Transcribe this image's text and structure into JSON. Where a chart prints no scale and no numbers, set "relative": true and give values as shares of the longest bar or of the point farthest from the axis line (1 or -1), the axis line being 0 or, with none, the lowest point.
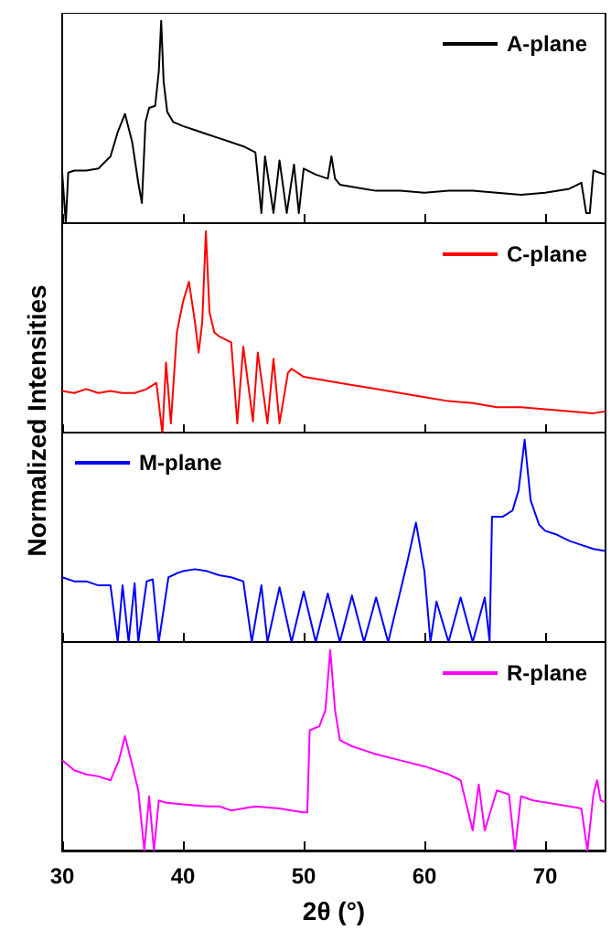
{
  "chart_data": [
    {
      "type": "line",
      "relative": true,
      "xlim": [
        30,
        75
      ],
      "xticks": [
        30,
        40,
        50,
        60,
        70
      ],
      "tick_labels": false,
      "legend": "top right",
      "grid": false,
      "marker": "none",
      "line_style": "solid",
      "series": [
        {
          "name": "A-plane",
          "color": "#000000",
          "x": [
            30,
            30.3,
            30.5,
            31,
            32,
            33,
            34,
            34.6,
            35.2,
            35.8,
            36.3,
            36.6,
            36.9,
            37.2,
            37.7,
            38.0,
            38.2,
            38.4,
            38.7,
            39.2,
            40,
            41,
            42,
            43,
            44,
            45,
            46,
            46.5,
            46.8,
            47.5,
            48,
            48.6,
            49.2,
            49.6,
            50,
            51,
            52,
            52.3,
            52.6,
            53,
            54,
            55,
            56,
            58,
            60,
            62,
            64,
            66,
            68,
            70,
            72,
            73,
            73.4,
            73.7,
            74,
            74.5,
            75
          ],
          "values": [
            0.25,
            0,
            0.25,
            0.26,
            0.26,
            0.27,
            0.33,
            0.45,
            0.54,
            0.4,
            0.2,
            0.1,
            0.5,
            0.57,
            0.58,
            0.75,
            1,
            0.7,
            0.55,
            0.5,
            0.48,
            0.46,
            0.44,
            0.42,
            0.4,
            0.38,
            0.35,
            0.05,
            0.33,
            0.05,
            0.31,
            0.05,
            0.29,
            0.05,
            0.27,
            0.24,
            0.22,
            0.33,
            0.22,
            0.19,
            0.18,
            0.17,
            0.16,
            0.16,
            0.15,
            0.16,
            0.16,
            0.15,
            0.14,
            0.15,
            0.17,
            0.2,
            0.05,
            0.05,
            0.26,
            0.25,
            0.24
          ]
        }
      ]
    },
    {
      "type": "line",
      "relative": true,
      "xlim": [
        30,
        75
      ],
      "xticks": [
        30,
        40,
        50,
        60,
        70
      ],
      "tick_labels": false,
      "legend": "top right",
      "grid": false,
      "marker": "none",
      "line_style": "solid",
      "ylabel": "Normalized Intensities",
      "series": [
        {
          "name": "C-plane",
          "color": "#ff0000",
          "x": [
            30,
            31,
            32,
            33,
            34,
            35,
            36,
            37,
            37.8,
            38.3,
            38.6,
            39,
            39.5,
            40,
            40.5,
            41,
            41.3,
            41.6,
            41.9,
            42.2,
            42.6,
            43,
            44,
            44.5,
            45,
            45.8,
            46.2,
            47,
            47.5,
            48,
            48.7,
            49,
            50,
            52,
            54,
            56,
            58,
            60,
            62,
            64,
            66,
            68,
            70,
            72,
            74,
            75
          ],
          "values": [
            0.21,
            0.2,
            0.22,
            0.2,
            0.21,
            0.2,
            0.2,
            0.22,
            0.25,
            0,
            0.35,
            0.05,
            0.5,
            0.65,
            0.75,
            0.55,
            0.4,
            0.55,
            1,
            0.6,
            0.5,
            0.48,
            0.45,
            0.05,
            0.43,
            0.06,
            0.4,
            0.05,
            0.37,
            0.05,
            0.3,
            0.32,
            0.28,
            0.26,
            0.24,
            0.22,
            0.2,
            0.18,
            0.16,
            0.15,
            0.13,
            0.13,
            0.12,
            0.11,
            0.1,
            0.11
          ]
        }
      ]
    },
    {
      "type": "line",
      "relative": true,
      "xlim": [
        30,
        75
      ],
      "xticks": [
        30,
        40,
        50,
        60,
        70
      ],
      "tick_labels": false,
      "legend": "top left",
      "grid": false,
      "marker": "none",
      "line_style": "solid",
      "series": [
        {
          "name": "M-plane",
          "color": "#0000ff",
          "x": [
            30,
            31,
            32,
            33,
            34,
            34.6,
            35,
            35.5,
            36,
            36.3,
            37,
            37.5,
            38,
            38.8,
            39.5,
            40,
            41,
            42,
            43,
            44,
            45,
            45.7,
            46.5,
            47,
            48,
            49,
            50,
            51,
            52,
            53,
            54,
            55,
            56,
            57,
            58,
            58.6,
            59.3,
            60,
            60.5,
            61,
            62,
            63,
            64,
            65,
            65.4,
            65.6,
            66.5,
            67.3,
            67.8,
            68.3,
            68.8,
            69.5,
            70,
            71,
            72,
            73,
            74,
            75
          ],
          "values": [
            0.32,
            0.3,
            0.3,
            0.28,
            0.28,
            0,
            0.28,
            0,
            0.29,
            0,
            0.3,
            0.31,
            0,
            0.32,
            0.34,
            0.35,
            0.36,
            0.35,
            0.33,
            0.32,
            0.3,
            0,
            0.28,
            0,
            0.27,
            0,
            0.25,
            0,
            0.24,
            0,
            0.23,
            0,
            0.22,
            0,
            0.25,
            0.4,
            0.59,
            0.35,
            0,
            0.2,
            0,
            0.22,
            0,
            0.22,
            0,
            0.62,
            0.62,
            0.65,
            0.75,
            1,
            0.7,
            0.58,
            0.55,
            0.53,
            0.5,
            0.48,
            0.46,
            0.45
          ]
        }
      ]
    },
    {
      "type": "line",
      "relative": true,
      "xlim": [
        30,
        75
      ],
      "xticks": [
        30,
        40,
        50,
        60,
        70
      ],
      "tick_labels": "x",
      "legend": "top right",
      "grid": false,
      "marker": "none",
      "line_style": "solid",
      "xlabel": "2θ (°)",
      "series": [
        {
          "name": "R-plane",
          "color": "#ff00ff",
          "x": [
            30,
            31,
            32,
            33,
            34,
            34.7,
            35.2,
            35.7,
            36.3,
            36.8,
            37.2,
            37.6,
            38,
            38.5,
            40,
            42,
            43,
            44,
            46,
            48,
            49,
            50,
            50.3,
            50.5,
            51.3,
            51.8,
            52.2,
            52.6,
            53,
            54,
            55,
            56,
            58,
            60,
            62,
            63,
            64,
            64.5,
            65,
            66,
            67,
            67.5,
            68,
            69,
            70,
            71,
            72,
            73,
            73.5,
            74,
            74.3,
            74.6,
            75
          ],
          "values": [
            0.45,
            0.4,
            0.38,
            0.37,
            0.35,
            0.45,
            0.57,
            0.45,
            0.3,
            0,
            0.27,
            0,
            0.25,
            0.24,
            0.23,
            0.22,
            0.22,
            0.2,
            0.22,
            0.21,
            0.2,
            0.19,
            0.19,
            0.6,
            0.62,
            0.7,
            1,
            0.7,
            0.55,
            0.52,
            0.5,
            0.48,
            0.45,
            0.42,
            0.38,
            0.35,
            0.1,
            0.33,
            0.1,
            0.3,
            0.28,
            0,
            0.27,
            0.25,
            0.24,
            0.23,
            0.22,
            0.21,
            0,
            0.28,
            0.35,
            0.25,
            0.24
          ]
        }
      ]
    }
  ]
}
